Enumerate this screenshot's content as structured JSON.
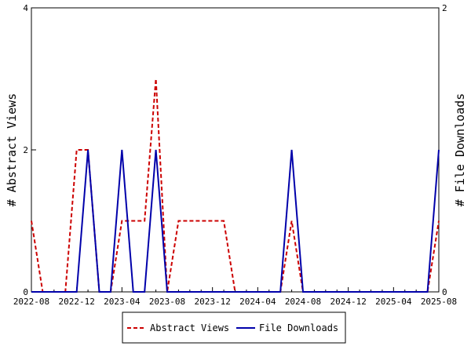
{
  "chart_data": {
    "type": "line",
    "x": [
      "2022-08",
      "2022-09",
      "2022-10",
      "2022-11",
      "2022-12",
      "2023-01",
      "2023-02",
      "2023-03",
      "2023-04",
      "2023-05",
      "2023-06",
      "2023-07",
      "2023-08",
      "2023-09",
      "2023-10",
      "2023-11",
      "2023-12",
      "2024-01",
      "2024-02",
      "2024-03",
      "2024-04",
      "2024-05",
      "2024-06",
      "2024-07",
      "2024-08",
      "2024-09",
      "2024-10",
      "2024-11",
      "2024-12",
      "2025-01",
      "2025-02",
      "2025-03",
      "2025-04",
      "2025-05",
      "2025-06",
      "2025-07",
      "2025-08"
    ],
    "x_ticks": [
      "2022-08",
      "2022-12",
      "2023-04",
      "2023-08",
      "2023-12",
      "2024-04",
      "2024-08",
      "2024-12",
      "2025-04",
      "2025-08"
    ],
    "series": [
      {
        "name": "Abstract Views",
        "axis": "left",
        "color": "#cc0000",
        "dash": "dashed",
        "values": [
          1,
          0,
          0,
          0,
          2,
          2,
          0,
          0,
          1,
          1,
          1,
          3,
          0,
          1,
          1,
          1,
          1,
          1,
          0,
          0,
          0,
          0,
          0,
          1,
          0,
          0,
          0,
          0,
          0,
          0,
          0,
          0,
          0,
          0,
          0,
          0,
          1
        ]
      },
      {
        "name": "File Downloads",
        "axis": "right",
        "color": "#0000aa",
        "dash": "solid",
        "values": [
          0,
          0,
          0,
          0,
          0,
          1,
          0,
          0,
          1,
          0,
          0,
          1,
          0,
          0,
          0,
          0,
          0,
          0,
          0,
          0,
          0,
          0,
          0,
          1,
          0,
          0,
          0,
          0,
          0,
          0,
          0,
          0,
          0,
          0,
          0,
          0,
          1
        ]
      }
    ],
    "y_left": {
      "label": "# Abstract Views",
      "ylim": [
        0,
        4
      ],
      "ticks": [
        0,
        2,
        4
      ]
    },
    "y_right": {
      "label": "# File Downloads",
      "ylim": [
        0,
        2
      ],
      "ticks": [
        0,
        2
      ]
    },
    "grid": false,
    "legend_position": "bottom"
  }
}
